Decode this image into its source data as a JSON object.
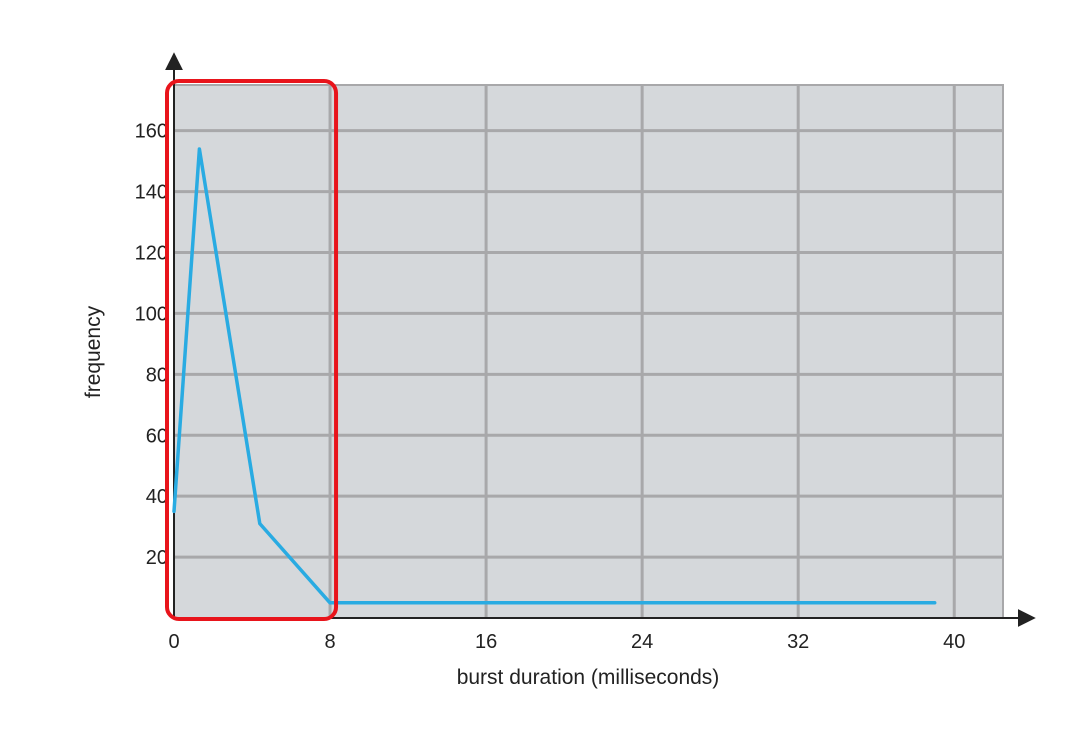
{
  "chart_data": {
    "type": "line",
    "title": "",
    "xlabel": "burst duration (milliseconds)",
    "ylabel": "frequency",
    "xlim": [
      0,
      42.5
    ],
    "ylim": [
      0,
      175
    ],
    "x_ticks": [
      0,
      8,
      16,
      24,
      32,
      40
    ],
    "y_ticks": [
      20,
      40,
      60,
      80,
      100,
      120,
      140,
      160
    ],
    "grid": true,
    "legend": "none",
    "series": [
      {
        "color": "#29abe2",
        "points": [
          [
            0,
            35
          ],
          [
            1.3,
            154
          ],
          [
            4.4,
            31
          ],
          [
            8,
            5
          ],
          [
            39,
            5
          ]
        ]
      }
    ],
    "highlight": {
      "x_range": [
        0,
        8
      ],
      "y_range": [
        0,
        175
      ],
      "color": "#e8141b"
    },
    "colors": {
      "plot_background": "#d5d8db",
      "grid": "#a8a8aa",
      "axis": "#222222"
    }
  }
}
